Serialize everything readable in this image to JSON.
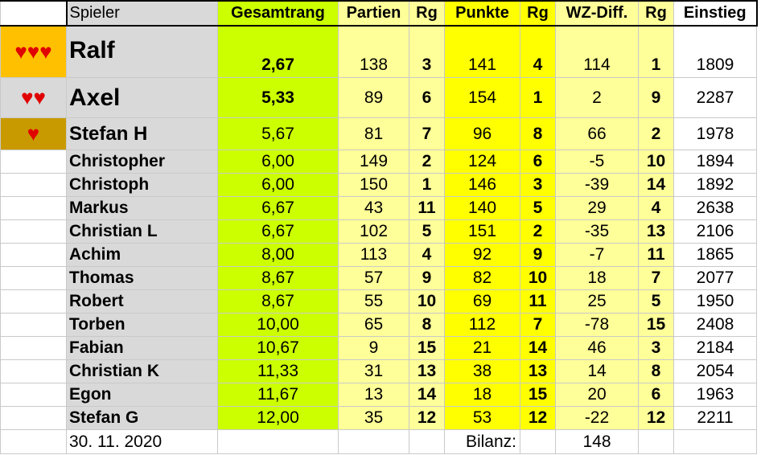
{
  "header": {
    "spieler": "Spieler",
    "gesamtrang": "Gesamtrang",
    "partien": "Partien",
    "rg1": "Rg",
    "punkte": "Punkte",
    "rg2": "Rg",
    "wzdiff": "WZ-Diff.",
    "rg3": "Rg",
    "einstieg": "Einstieg"
  },
  "rows": [
    {
      "hearts": "♥♥♥",
      "name": "Ralf",
      "gesamt": "2,67",
      "partien": "138",
      "rg1": "3",
      "punkte": "141",
      "rg2": "4",
      "wz": "114",
      "rg3": "1",
      "einstieg": "1809"
    },
    {
      "hearts": "♥♥",
      "name": "Axel",
      "gesamt": "5,33",
      "partien": "89",
      "rg1": "6",
      "punkte": "154",
      "rg2": "1",
      "wz": "2",
      "rg3": "9",
      "einstieg": "2287"
    },
    {
      "hearts": "♥",
      "name": "Stefan H",
      "gesamt": "5,67",
      "partien": "81",
      "rg1": "7",
      "punkte": "96",
      "rg2": "8",
      "wz": "66",
      "rg3": "2",
      "einstieg": "1978"
    },
    {
      "hearts": "",
      "name": "Christopher",
      "gesamt": "6,00",
      "partien": "149",
      "rg1": "2",
      "punkte": "124",
      "rg2": "6",
      "wz": "-5",
      "rg3": "10",
      "einstieg": "1894"
    },
    {
      "hearts": "",
      "name": "Christoph",
      "gesamt": "6,00",
      "partien": "150",
      "rg1": "1",
      "punkte": "146",
      "rg2": "3",
      "wz": "-39",
      "rg3": "14",
      "einstieg": "1892"
    },
    {
      "hearts": "",
      "name": "Markus",
      "gesamt": "6,67",
      "partien": "43",
      "rg1": "11",
      "punkte": "140",
      "rg2": "5",
      "wz": "29",
      "rg3": "4",
      "einstieg": "2638"
    },
    {
      "hearts": "",
      "name": "Christian L",
      "gesamt": "6,67",
      "partien": "102",
      "rg1": "5",
      "punkte": "151",
      "rg2": "2",
      "wz": "-35",
      "rg3": "13",
      "einstieg": "2106"
    },
    {
      "hearts": "",
      "name": "Achim",
      "gesamt": "8,00",
      "partien": "113",
      "rg1": "4",
      "punkte": "92",
      "rg2": "9",
      "wz": "-7",
      "rg3": "11",
      "einstieg": "1865"
    },
    {
      "hearts": "",
      "name": "Thomas",
      "gesamt": "8,67",
      "partien": "57",
      "rg1": "9",
      "punkte": "82",
      "rg2": "10",
      "wz": "18",
      "rg3": "7",
      "einstieg": "2077"
    },
    {
      "hearts": "",
      "name": "Robert",
      "gesamt": "8,67",
      "partien": "55",
      "rg1": "10",
      "punkte": "69",
      "rg2": "11",
      "wz": "25",
      "rg3": "5",
      "einstieg": "1950"
    },
    {
      "hearts": "",
      "name": "Torben",
      "gesamt": "10,00",
      "partien": "65",
      "rg1": "8",
      "punkte": "112",
      "rg2": "7",
      "wz": "-78",
      "rg3": "15",
      "einstieg": "2408"
    },
    {
      "hearts": "",
      "name": "Fabian",
      "gesamt": "10,67",
      "partien": "9",
      "rg1": "15",
      "punkte": "21",
      "rg2": "14",
      "wz": "46",
      "rg3": "3",
      "einstieg": "2184"
    },
    {
      "hearts": "",
      "name": "Christian K",
      "gesamt": "11,33",
      "partien": "31",
      "rg1": "13",
      "punkte": "38",
      "rg2": "13",
      "wz": "14",
      "rg3": "8",
      "einstieg": "2054"
    },
    {
      "hearts": "",
      "name": "Egon",
      "gesamt": "11,67",
      "partien": "13",
      "rg1": "14",
      "punkte": "18",
      "rg2": "15",
      "wz": "20",
      "rg3": "6",
      "einstieg": "1963"
    },
    {
      "hearts": "",
      "name": "Stefan G",
      "gesamt": "12,00",
      "partien": "35",
      "rg1": "12",
      "punkte": "53",
      "rg2": "12",
      "wz": "-22",
      "rg3": "12",
      "einstieg": "2211"
    }
  ],
  "footer": {
    "date": "30. 11. 2020",
    "bilanz_label": "Bilanz:",
    "bilanz_value": "148"
  },
  "colors": {
    "gold": "#ffc000",
    "silver": "#d9d9d9",
    "bronze": "#c89a00",
    "lime": "#ccff00",
    "lightyellow": "#ffff99",
    "yellow": "#ffff00",
    "heart": "#e00000"
  }
}
